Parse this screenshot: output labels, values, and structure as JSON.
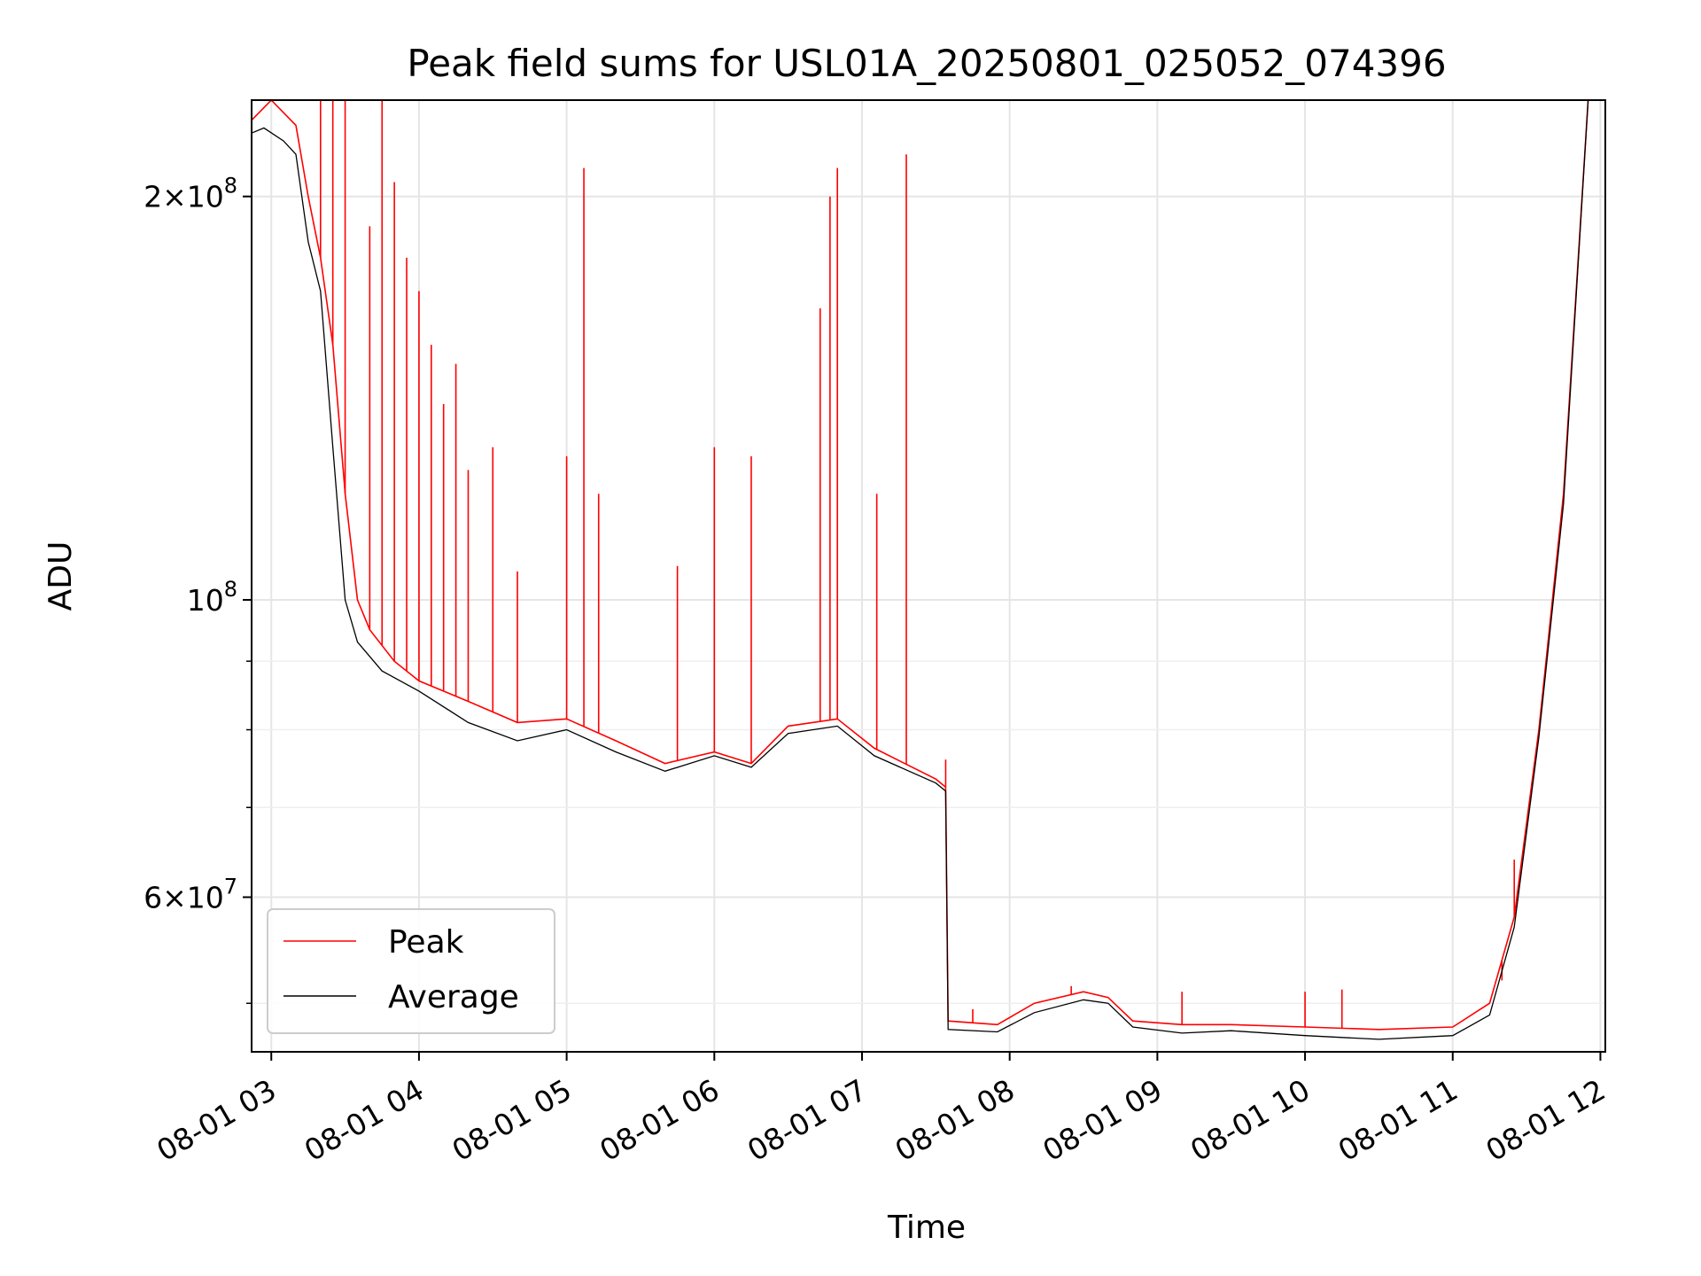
{
  "chart_data": {
    "type": "line",
    "title": "Peak field sums for USL01A_20250801_025052_074396",
    "xlabel": "Time",
    "ylabel": "ADU",
    "yscale": "log",
    "xlim": [
      "2025-08-01 02:52",
      "2025-08-01 12:02"
    ],
    "ylim": [
      46000000,
      236000000
    ],
    "grid": true,
    "legend": "lower-left",
    "x_ticks": [
      {
        "t": "2025-08-01 03:00",
        "label": "08-01 03"
      },
      {
        "t": "2025-08-01 04:00",
        "label": "08-01 04"
      },
      {
        "t": "2025-08-01 05:00",
        "label": "08-01 05"
      },
      {
        "t": "2025-08-01 06:00",
        "label": "08-01 06"
      },
      {
        "t": "2025-08-01 07:00",
        "label": "08-01 07"
      },
      {
        "t": "2025-08-01 08:00",
        "label": "08-01 08"
      },
      {
        "t": "2025-08-01 09:00",
        "label": "08-01 09"
      },
      {
        "t": "2025-08-01 10:00",
        "label": "08-01 10"
      },
      {
        "t": "2025-08-01 11:00",
        "label": "08-01 11"
      },
      {
        "t": "2025-08-01 12:00",
        "label": "08-01 12"
      }
    ],
    "y_ticks_major": [
      {
        "value": 60000000,
        "mant": "6",
        "exp": "7"
      },
      {
        "value": 100000000,
        "mant": "",
        "exp": "8"
      },
      {
        "value": 200000000,
        "mant": "2",
        "exp": "8"
      }
    ],
    "y_ticks_minor": [
      50000000,
      70000000,
      80000000,
      90000000,
      300000000
    ],
    "series": [
      {
        "name": "Peak",
        "color": "#ff0000",
        "points": [
          [
            "2025-08-01 02:52",
            228000000
          ],
          [
            "2025-08-01 03:00",
            236000000
          ],
          [
            "2025-08-01 03:10",
            226000000
          ],
          [
            "2025-08-01 03:15",
            200000000
          ],
          [
            "2025-08-01 03:20",
            180000000
          ],
          [
            "2025-08-01 03:25",
            155000000
          ],
          [
            "2025-08-01 03:30",
            120000000
          ],
          [
            "2025-08-01 03:35",
            100000000
          ],
          [
            "2025-08-01 03:40",
            95000000
          ],
          [
            "2025-08-01 03:50",
            90000000
          ],
          [
            "2025-08-01 04:00",
            87000000
          ],
          [
            "2025-08-01 04:20",
            84000000
          ],
          [
            "2025-08-01 04:40",
            81000000
          ],
          [
            "2025-08-01 05:00",
            81500000
          ],
          [
            "2025-08-01 05:20",
            78500000
          ],
          [
            "2025-08-01 05:40",
            75500000
          ],
          [
            "2025-08-01 06:00",
            77000000
          ],
          [
            "2025-08-01 06:15",
            75500000
          ],
          [
            "2025-08-01 06:30",
            80500000
          ],
          [
            "2025-08-01 06:50",
            81500000
          ],
          [
            "2025-08-01 07:05",
            77500000
          ],
          [
            "2025-08-01 07:30",
            73500000
          ],
          [
            "2025-08-01 07:34",
            72500000
          ],
          [
            "2025-08-01 07:35",
            48500000
          ],
          [
            "2025-08-01 07:55",
            48200000
          ],
          [
            "2025-08-01 08:10",
            50000000
          ],
          [
            "2025-08-01 08:30",
            51000000
          ],
          [
            "2025-08-01 08:40",
            50500000
          ],
          [
            "2025-08-01 08:50",
            48500000
          ],
          [
            "2025-08-01 09:10",
            48200000
          ],
          [
            "2025-08-01 09:30",
            48200000
          ],
          [
            "2025-08-01 10:00",
            48000000
          ],
          [
            "2025-08-01 10:30",
            47800000
          ],
          [
            "2025-08-01 11:00",
            48000000
          ],
          [
            "2025-08-01 11:15",
            50000000
          ],
          [
            "2025-08-01 11:25",
            58000000
          ],
          [
            "2025-08-01 11:35",
            80000000
          ],
          [
            "2025-08-01 11:45",
            120000000
          ],
          [
            "2025-08-01 11:55",
            236000000
          ]
        ],
        "spikes": [
          [
            "2025-08-01 03:20",
            236000000
          ],
          [
            "2025-08-01 03:25",
            236000000
          ],
          [
            "2025-08-01 03:30",
            236000000
          ],
          [
            "2025-08-01 03:40",
            190000000
          ],
          [
            "2025-08-01 03:45",
            236000000
          ],
          [
            "2025-08-01 03:50",
            205000000
          ],
          [
            "2025-08-01 03:55",
            180000000
          ],
          [
            "2025-08-01 04:00",
            170000000
          ],
          [
            "2025-08-01 04:05",
            155000000
          ],
          [
            "2025-08-01 04:10",
            140000000
          ],
          [
            "2025-08-01 04:15",
            150000000
          ],
          [
            "2025-08-01 04:20",
            125000000
          ],
          [
            "2025-08-01 04:30",
            130000000
          ],
          [
            "2025-08-01 04:40",
            105000000
          ],
          [
            "2025-08-01 05:00",
            128000000
          ],
          [
            "2025-08-01 05:07",
            210000000
          ],
          [
            "2025-08-01 05:13",
            120000000
          ],
          [
            "2025-08-01 05:45",
            106000000
          ],
          [
            "2025-08-01 06:00",
            130000000
          ],
          [
            "2025-08-01 06:15",
            128000000
          ],
          [
            "2025-08-01 06:43",
            165000000
          ],
          [
            "2025-08-01 06:47",
            200000000
          ],
          [
            "2025-08-01 06:50",
            210000000
          ],
          [
            "2025-08-01 07:06",
            120000000
          ],
          [
            "2025-08-01 07:18",
            215000000
          ],
          [
            "2025-08-01 07:34",
            76000000
          ],
          [
            "2025-08-01 07:45",
            49500000
          ],
          [
            "2025-08-01 08:25",
            51500000
          ],
          [
            "2025-08-01 09:10",
            51000000
          ],
          [
            "2025-08-01 10:00",
            51000000
          ],
          [
            "2025-08-01 10:15",
            51200000
          ],
          [
            "2025-08-01 11:20",
            52000000
          ],
          [
            "2025-08-01 11:25",
            64000000
          ]
        ]
      },
      {
        "name": "Average",
        "color": "#000000",
        "points": [
          [
            "2025-08-01 02:52",
            223000000
          ],
          [
            "2025-08-01 02:57",
            225000000
          ],
          [
            "2025-08-01 03:05",
            220000000
          ],
          [
            "2025-08-01 03:10",
            215000000
          ],
          [
            "2025-08-01 03:15",
            185000000
          ],
          [
            "2025-08-01 03:20",
            170000000
          ],
          [
            "2025-08-01 03:25",
            130000000
          ],
          [
            "2025-08-01 03:30",
            100000000
          ],
          [
            "2025-08-01 03:35",
            93000000
          ],
          [
            "2025-08-01 03:45",
            88500000
          ],
          [
            "2025-08-01 04:00",
            85500000
          ],
          [
            "2025-08-01 04:20",
            81000000
          ],
          [
            "2025-08-01 04:40",
            78500000
          ],
          [
            "2025-08-01 05:00",
            80000000
          ],
          [
            "2025-08-01 05:20",
            77000000
          ],
          [
            "2025-08-01 05:40",
            74500000
          ],
          [
            "2025-08-01 06:00",
            76500000
          ],
          [
            "2025-08-01 06:15",
            75000000
          ],
          [
            "2025-08-01 06:30",
            79500000
          ],
          [
            "2025-08-01 06:50",
            80500000
          ],
          [
            "2025-08-01 07:05",
            76500000
          ],
          [
            "2025-08-01 07:30",
            73000000
          ],
          [
            "2025-08-01 07:34",
            72000000
          ],
          [
            "2025-08-01 07:35",
            47800000
          ],
          [
            "2025-08-01 07:55",
            47600000
          ],
          [
            "2025-08-01 08:10",
            49200000
          ],
          [
            "2025-08-01 08:30",
            50300000
          ],
          [
            "2025-08-01 08:40",
            50000000
          ],
          [
            "2025-08-01 08:50",
            48000000
          ],
          [
            "2025-08-01 09:10",
            47500000
          ],
          [
            "2025-08-01 09:30",
            47700000
          ],
          [
            "2025-08-01 10:00",
            47300000
          ],
          [
            "2025-08-01 10:30",
            47000000
          ],
          [
            "2025-08-01 11:00",
            47300000
          ],
          [
            "2025-08-01 11:15",
            49000000
          ],
          [
            "2025-08-01 11:25",
            57000000
          ],
          [
            "2025-08-01 11:35",
            79000000
          ],
          [
            "2025-08-01 11:45",
            118000000
          ],
          [
            "2025-08-01 11:55",
            236000000
          ]
        ]
      }
    ]
  }
}
